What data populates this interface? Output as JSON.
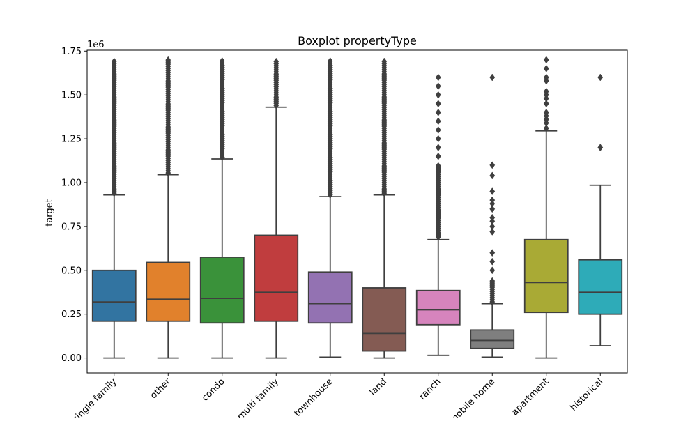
{
  "chart_data": {
    "type": "box",
    "title": "Boxplot propertyType",
    "xlabel": "",
    "ylabel": "target",
    "y_offset_label": "1e6",
    "ylim": [
      -0.085,
      1.755
    ],
    "y_unit_multiplier": 1000000,
    "yticks": [
      0.0,
      0.25,
      0.5,
      0.75,
      1.0,
      1.25,
      1.5,
      1.75
    ],
    "ytick_labels": [
      "0.00",
      "0.25",
      "0.50",
      "0.75",
      "1.00",
      "1.25",
      "1.50",
      "1.75"
    ],
    "xtick_rotation_deg": 45,
    "grid": false,
    "categories": [
      {
        "label": "single family",
        "color": "#3274a1",
        "whisker_low": 0.0,
        "q1": 0.21,
        "median": 0.32,
        "q3": 0.5,
        "whisker_high": 0.93,
        "outliers": {
          "dense_from": 0.94,
          "dense_to": 1.7,
          "points": []
        }
      },
      {
        "label": "other",
        "color": "#e1812c",
        "whisker_low": 0.0,
        "q1": 0.21,
        "median": 0.335,
        "q3": 0.545,
        "whisker_high": 1.045,
        "outliers": {
          "dense_from": 1.055,
          "dense_to": 1.7,
          "points": []
        }
      },
      {
        "label": "condo",
        "color": "#3a923a",
        "whisker_low": 0.0,
        "q1": 0.2,
        "median": 0.34,
        "q3": 0.575,
        "whisker_high": 1.135,
        "outliers": {
          "dense_from": 1.145,
          "dense_to": 1.7,
          "points": []
        }
      },
      {
        "label": "multi family",
        "color": "#c03d3e",
        "whisker_low": 0.0,
        "q1": 0.21,
        "median": 0.375,
        "q3": 0.7,
        "whisker_high": 1.43,
        "outliers": {
          "dense_from": 1.44,
          "dense_to": 1.7,
          "points": []
        }
      },
      {
        "label": "townhouse",
        "color": "#9372b2",
        "whisker_low": 0.005,
        "q1": 0.2,
        "median": 0.31,
        "q3": 0.49,
        "whisker_high": 0.92,
        "outliers": {
          "dense_from": 0.93,
          "dense_to": 1.7,
          "points": []
        }
      },
      {
        "label": "land",
        "color": "#845b53",
        "whisker_low": 0.0,
        "q1": 0.04,
        "median": 0.14,
        "q3": 0.4,
        "whisker_high": 0.93,
        "outliers": {
          "dense_from": 0.94,
          "dense_to": 1.7,
          "points": []
        }
      },
      {
        "label": "ranch",
        "color": "#d684bd",
        "whisker_low": 0.015,
        "q1": 0.19,
        "median": 0.275,
        "q3": 0.385,
        "whisker_high": 0.675,
        "outliers": {
          "dense_from": 0.69,
          "dense_to": 1.1,
          "points": [
            1.15,
            1.2,
            1.25,
            1.3,
            1.35,
            1.4,
            1.45,
            1.5,
            1.55,
            1.6
          ]
        }
      },
      {
        "label": "mobile home",
        "color": "#7f7f7f",
        "whisker_low": 0.005,
        "q1": 0.055,
        "median": 0.1,
        "q3": 0.16,
        "whisker_high": 0.31,
        "outliers": {
          "dense_from": 0.32,
          "dense_to": 0.45,
          "points": [
            0.5,
            0.55,
            0.6,
            0.72,
            0.75,
            0.78,
            0.8,
            0.85,
            0.88,
            0.9,
            0.95,
            1.04,
            1.1,
            1.6
          ]
        }
      },
      {
        "label": "apartment",
        "color": "#a9aa35",
        "whisker_low": 0.0,
        "q1": 0.26,
        "median": 0.43,
        "q3": 0.675,
        "whisker_high": 1.295,
        "outliers": {
          "dense_from": 0.0,
          "dense_to": 0.0,
          "points": [
            1.31,
            1.34,
            1.36,
            1.38,
            1.4,
            1.45,
            1.48,
            1.5,
            1.52,
            1.58,
            1.6,
            1.65,
            1.7
          ]
        }
      },
      {
        "label": "historical",
        "color": "#2eabb8",
        "whisker_low": 0.07,
        "q1": 0.25,
        "median": 0.375,
        "q3": 0.56,
        "whisker_high": 0.985,
        "outliers": {
          "dense_from": 0.0,
          "dense_to": 0.0,
          "points": [
            1.2,
            1.6
          ]
        }
      }
    ]
  }
}
